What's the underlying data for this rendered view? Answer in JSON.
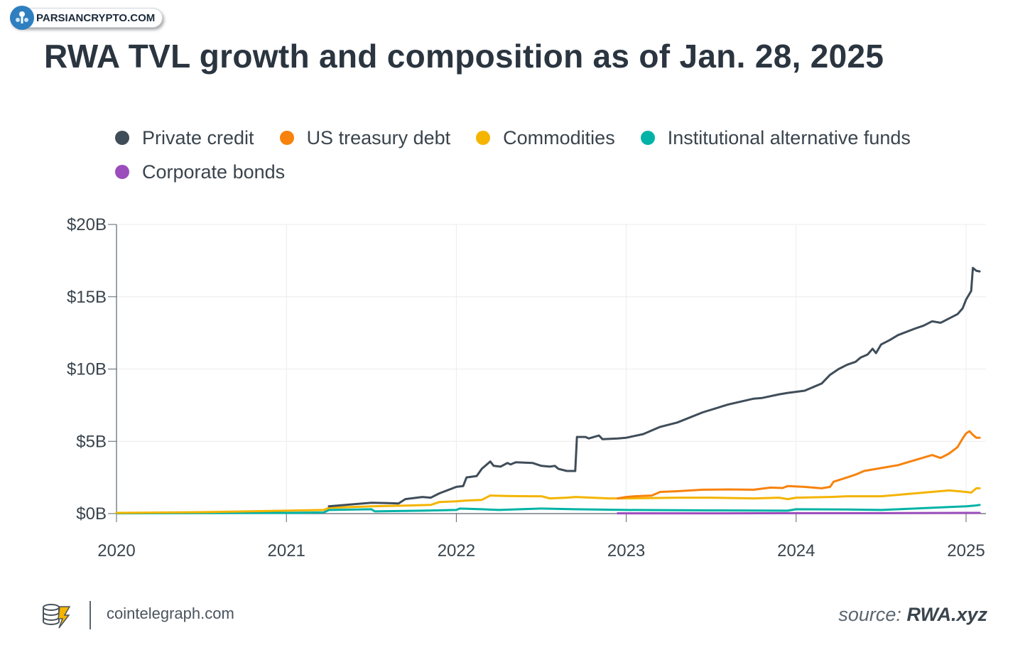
{
  "watermark": {
    "text": "PARSIANCRYPTO.COM"
  },
  "footer": {
    "site": "cointelegraph.com",
    "source_prefix": "source:",
    "source_name": "RWA.xyz"
  },
  "chart_data": {
    "type": "line",
    "title": "RWA TVL growth and composition as of Jan. 28, 2025",
    "xlabel": "",
    "ylabel": "",
    "xlim": [
      2020.0,
      2025.12
    ],
    "ylim": [
      0,
      20
    ],
    "x_ticks": [
      2020,
      2021,
      2022,
      2023,
      2024,
      2025
    ],
    "x_tick_labels": [
      "2020",
      "2021",
      "2022",
      "2023",
      "2024",
      "2025"
    ],
    "y_ticks": [
      0,
      5,
      10,
      15,
      20
    ],
    "y_tick_labels": [
      "$0B",
      "$5B",
      "$10B",
      "$15B",
      "$20B"
    ],
    "grid": true,
    "legend_position": "top-left",
    "series": [
      {
        "name": "Private credit",
        "color": "#3f4d59",
        "points": [
          [
            2021.25,
            0.5
          ],
          [
            2021.5,
            0.75
          ],
          [
            2021.6,
            0.72
          ],
          [
            2021.66,
            0.7
          ],
          [
            2021.7,
            1.0
          ],
          [
            2021.8,
            1.15
          ],
          [
            2021.85,
            1.1
          ],
          [
            2021.9,
            1.4
          ],
          [
            2022.0,
            1.85
          ],
          [
            2022.04,
            1.9
          ],
          [
            2022.06,
            2.5
          ],
          [
            2022.12,
            2.6
          ],
          [
            2022.15,
            3.1
          ],
          [
            2022.2,
            3.6
          ],
          [
            2022.22,
            3.3
          ],
          [
            2022.26,
            3.25
          ],
          [
            2022.3,
            3.5
          ],
          [
            2022.32,
            3.4
          ],
          [
            2022.35,
            3.55
          ],
          [
            2022.45,
            3.5
          ],
          [
            2022.5,
            3.3
          ],
          [
            2022.55,
            3.25
          ],
          [
            2022.58,
            3.3
          ],
          [
            2022.6,
            3.1
          ],
          [
            2022.65,
            2.95
          ],
          [
            2022.7,
            2.95
          ],
          [
            2022.71,
            5.3
          ],
          [
            2022.76,
            5.3
          ],
          [
            2022.78,
            5.2
          ],
          [
            2022.84,
            5.4
          ],
          [
            2022.86,
            5.15
          ],
          [
            2022.95,
            5.2
          ],
          [
            2023.0,
            5.25
          ],
          [
            2023.1,
            5.5
          ],
          [
            2023.2,
            6.0
          ],
          [
            2023.3,
            6.3
          ],
          [
            2023.45,
            7.0
          ],
          [
            2023.6,
            7.55
          ],
          [
            2023.75,
            7.95
          ],
          [
            2023.8,
            8.0
          ],
          [
            2023.9,
            8.25
          ],
          [
            2023.95,
            8.35
          ],
          [
            2024.05,
            8.5
          ],
          [
            2024.15,
            9.0
          ],
          [
            2024.2,
            9.6
          ],
          [
            2024.25,
            10.0
          ],
          [
            2024.3,
            10.3
          ],
          [
            2024.35,
            10.5
          ],
          [
            2024.38,
            10.8
          ],
          [
            2024.42,
            11.0
          ],
          [
            2024.45,
            11.4
          ],
          [
            2024.47,
            11.1
          ],
          [
            2024.5,
            11.7
          ],
          [
            2024.55,
            12.0
          ],
          [
            2024.6,
            12.35
          ],
          [
            2024.7,
            12.8
          ],
          [
            2024.75,
            13.0
          ],
          [
            2024.8,
            13.3
          ],
          [
            2024.85,
            13.2
          ],
          [
            2024.9,
            13.5
          ],
          [
            2024.95,
            13.8
          ],
          [
            2024.98,
            14.2
          ],
          [
            2025.0,
            14.8
          ],
          [
            2025.03,
            15.4
          ],
          [
            2025.04,
            17.0
          ],
          [
            2025.06,
            16.8
          ],
          [
            2025.08,
            16.75
          ]
        ]
      },
      {
        "name": "US treasury debt",
        "color": "#f7820c",
        "points": [
          [
            2022.95,
            1.05
          ],
          [
            2023.0,
            1.15
          ],
          [
            2023.05,
            1.2
          ],
          [
            2023.15,
            1.25
          ],
          [
            2023.2,
            1.5
          ],
          [
            2023.3,
            1.55
          ],
          [
            2023.45,
            1.65
          ],
          [
            2023.6,
            1.67
          ],
          [
            2023.75,
            1.65
          ],
          [
            2023.85,
            1.8
          ],
          [
            2023.92,
            1.77
          ],
          [
            2023.95,
            1.9
          ],
          [
            2024.05,
            1.85
          ],
          [
            2024.15,
            1.75
          ],
          [
            2024.2,
            1.85
          ],
          [
            2024.22,
            2.2
          ],
          [
            2024.3,
            2.5
          ],
          [
            2024.35,
            2.7
          ],
          [
            2024.4,
            2.95
          ],
          [
            2024.5,
            3.15
          ],
          [
            2024.6,
            3.35
          ],
          [
            2024.7,
            3.7
          ],
          [
            2024.8,
            4.05
          ],
          [
            2024.85,
            3.85
          ],
          [
            2024.9,
            4.15
          ],
          [
            2024.95,
            4.6
          ],
          [
            2024.98,
            5.2
          ],
          [
            2025.0,
            5.55
          ],
          [
            2025.02,
            5.7
          ],
          [
            2025.04,
            5.45
          ],
          [
            2025.06,
            5.25
          ],
          [
            2025.08,
            5.25
          ]
        ]
      },
      {
        "name": "Commodities",
        "color": "#f4b400",
        "points": [
          [
            2020.0,
            0.05
          ],
          [
            2020.5,
            0.1
          ],
          [
            2021.0,
            0.2
          ],
          [
            2021.22,
            0.25
          ],
          [
            2021.25,
            0.4
          ],
          [
            2021.5,
            0.5
          ],
          [
            2021.7,
            0.55
          ],
          [
            2021.85,
            0.6
          ],
          [
            2021.9,
            0.8
          ],
          [
            2022.0,
            0.85
          ],
          [
            2022.05,
            0.9
          ],
          [
            2022.15,
            0.95
          ],
          [
            2022.2,
            1.25
          ],
          [
            2022.3,
            1.22
          ],
          [
            2022.45,
            1.2
          ],
          [
            2022.5,
            1.2
          ],
          [
            2022.55,
            1.05
          ],
          [
            2022.65,
            1.1
          ],
          [
            2022.7,
            1.15
          ],
          [
            2022.8,
            1.1
          ],
          [
            2022.9,
            1.05
          ],
          [
            2023.0,
            1.05
          ],
          [
            2023.3,
            1.1
          ],
          [
            2023.5,
            1.1
          ],
          [
            2023.75,
            1.05
          ],
          [
            2023.9,
            1.1
          ],
          [
            2023.95,
            1.0
          ],
          [
            2024.0,
            1.1
          ],
          [
            2024.2,
            1.15
          ],
          [
            2024.3,
            1.2
          ],
          [
            2024.5,
            1.2
          ],
          [
            2024.7,
            1.4
          ],
          [
            2024.9,
            1.6
          ],
          [
            2025.0,
            1.5
          ],
          [
            2025.03,
            1.45
          ],
          [
            2025.06,
            1.75
          ],
          [
            2025.08,
            1.75
          ]
        ]
      },
      {
        "name": "Institutional alternative funds",
        "color": "#00b3a6",
        "points": [
          [
            2020.0,
            0.02
          ],
          [
            2021.0,
            0.05
          ],
          [
            2021.22,
            0.08
          ],
          [
            2021.25,
            0.25
          ],
          [
            2021.5,
            0.3
          ],
          [
            2021.52,
            0.15
          ],
          [
            2021.8,
            0.2
          ],
          [
            2022.0,
            0.25
          ],
          [
            2022.02,
            0.35
          ],
          [
            2022.15,
            0.3
          ],
          [
            2022.25,
            0.25
          ],
          [
            2022.5,
            0.35
          ],
          [
            2022.7,
            0.3
          ],
          [
            2023.0,
            0.25
          ],
          [
            2023.5,
            0.22
          ],
          [
            2023.95,
            0.2
          ],
          [
            2024.0,
            0.3
          ],
          [
            2024.3,
            0.28
          ],
          [
            2024.5,
            0.25
          ],
          [
            2024.7,
            0.35
          ],
          [
            2024.9,
            0.45
          ],
          [
            2025.0,
            0.5
          ],
          [
            2025.05,
            0.55
          ],
          [
            2025.08,
            0.6
          ]
        ]
      },
      {
        "name": "Corporate bonds",
        "color": "#9b4dbb",
        "points": [
          [
            2022.95,
            0.02
          ],
          [
            2023.5,
            0.02
          ],
          [
            2024.0,
            0.03
          ],
          [
            2024.5,
            0.03
          ],
          [
            2025.0,
            0.05
          ],
          [
            2025.08,
            0.05
          ]
        ]
      }
    ]
  }
}
